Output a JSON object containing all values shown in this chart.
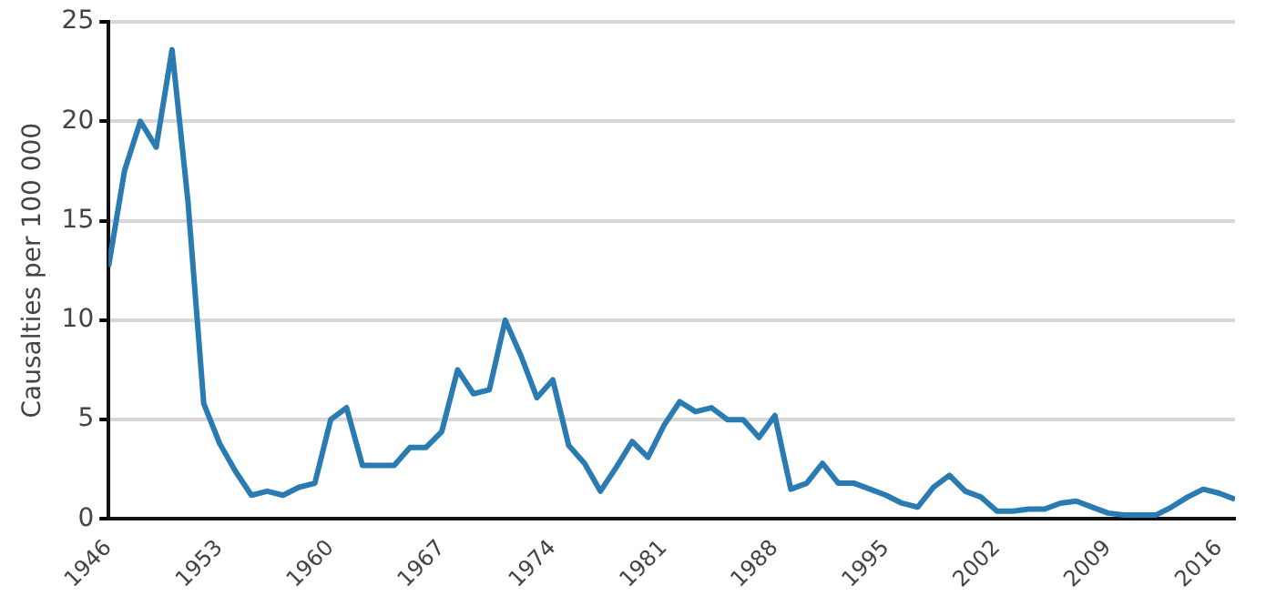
{
  "chart_data": {
    "type": "line",
    "ylabel": "Causalties per 100 000",
    "x": [
      1946,
      1947,
      1948,
      1949,
      1950,
      1951,
      1952,
      1953,
      1954,
      1955,
      1956,
      1957,
      1958,
      1959,
      1960,
      1961,
      1962,
      1963,
      1964,
      1965,
      1966,
      1967,
      1968,
      1969,
      1970,
      1971,
      1972,
      1973,
      1974,
      1975,
      1976,
      1977,
      1978,
      1979,
      1980,
      1981,
      1982,
      1983,
      1984,
      1985,
      1986,
      1987,
      1988,
      1989,
      1990,
      1991,
      1992,
      1993,
      1994,
      1995,
      1996,
      1997,
      1998,
      1999,
      2000,
      2001,
      2002,
      2003,
      2004,
      2005,
      2006,
      2007,
      2008,
      2009,
      2010,
      2011,
      2012,
      2013,
      2014,
      2015,
      2016,
      2017
    ],
    "series": [
      {
        "color": "#2b7bb3",
        "values": [
          12.7,
          17.5,
          20,
          18.7,
          23.6,
          16,
          5.8,
          3.8,
          2.4,
          1.2,
          1.4,
          1.2,
          1.6,
          1.8,
          5,
          5.6,
          2.7,
          2.7,
          2.7,
          3.6,
          3.6,
          4.4,
          7.5,
          6.3,
          6.5,
          10,
          8.2,
          6.1,
          7,
          3.7,
          2.8,
          1.4,
          2.6,
          3.9,
          3.1,
          4.7,
          5.9,
          5.4,
          5.6,
          5,
          5,
          4.1,
          5.2,
          1.5,
          1.8,
          2.8,
          1.8,
          1.8,
          1.5,
          1.2,
          0.8,
          0.6,
          1.6,
          2.2,
          1.4,
          1.1,
          0.4,
          0.4,
          0.5,
          0.5,
          0.8,
          0.9,
          0.6,
          0.3,
          0.2,
          0.2,
          0.2,
          0.6,
          1.1,
          1.5,
          1.3,
          1
        ]
      }
    ],
    "xlim": [
      1946,
      2017
    ],
    "xticks": [
      1946,
      1953,
      1960,
      1967,
      1974,
      1981,
      1988,
      1995,
      2002,
      2009,
      2016
    ],
    "ylim": [
      0,
      25
    ],
    "yticks": [
      0,
      5,
      10,
      15,
      20,
      25
    ],
    "grid": "y",
    "legend": false,
    "marker": "none",
    "line_style": "solid"
  }
}
